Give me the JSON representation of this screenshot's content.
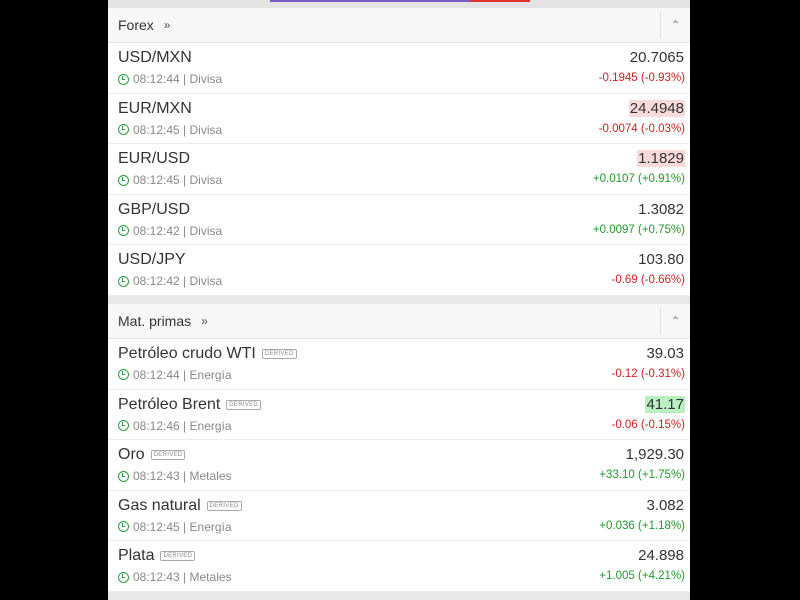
{
  "sections": [
    {
      "title": "Forex",
      "more": "»",
      "collapse": "⌃",
      "rows": [
        {
          "name": "USD/MXN",
          "time": "08:12:44",
          "category": "Divisa",
          "price": "20.7065",
          "change": "-0.1945 (-0.93%)",
          "dir": "neg",
          "flash": ""
        },
        {
          "name": "EUR/MXN",
          "time": "08:12:45",
          "category": "Divisa",
          "price": "24.4948",
          "change": "-0.0074 (-0.03%)",
          "dir": "neg",
          "flash": "down"
        },
        {
          "name": "EUR/USD",
          "time": "08:12:45",
          "category": "Divisa",
          "price": "1.1829",
          "change": "+0.0107 (+0.91%)",
          "dir": "pos",
          "flash": "down"
        },
        {
          "name": "GBP/USD",
          "time": "08:12:42",
          "category": "Divisa",
          "price": "1.3082",
          "change": "+0.0097 (+0.75%)",
          "dir": "pos",
          "flash": ""
        },
        {
          "name": "USD/JPY",
          "time": "08:12:42",
          "category": "Divisa",
          "price": "103.80",
          "change": "-0.69 (-0.66%)",
          "dir": "neg",
          "flash": ""
        }
      ]
    },
    {
      "title": "Mat. primas",
      "more": "»",
      "collapse": "⌃",
      "rows": [
        {
          "name": "Petróleo crudo WTI",
          "badge": "DERIVED",
          "time": "08:12:44",
          "category": "Energía",
          "price": "39.03",
          "change": "-0.12 (-0.31%)",
          "dir": "neg",
          "flash": ""
        },
        {
          "name": "Petróleo Brent",
          "badge": "DERIVED",
          "time": "08:12:46",
          "category": "Energía",
          "price": "41.17",
          "change": "-0.06 (-0.15%)",
          "dir": "neg",
          "flash": "up"
        },
        {
          "name": "Oro",
          "badge": "DERIVED",
          "time": "08:12:43",
          "category": "Metales",
          "price": "1,929.30",
          "change": "+33.10 (+1.75%)",
          "dir": "pos",
          "flash": ""
        },
        {
          "name": "Gas natural",
          "badge": "DERIVED",
          "time": "08:12:45",
          "category": "Energía",
          "price": "3.082",
          "change": "+0.036 (+1.18%)",
          "dir": "pos",
          "flash": ""
        },
        {
          "name": "Plata",
          "badge": "DERIVED",
          "time": "08:12:43",
          "category": "Metales",
          "price": "24.898",
          "change": "+1.005 (+4.21%)",
          "dir": "pos",
          "flash": ""
        }
      ]
    }
  ],
  "colors": {
    "negative": "#d02020",
    "positive": "#1f9a2a",
    "flash_down": "#fadbdb",
    "flash_up": "#b8f0c2",
    "tab_indicator": "#7b5cc4"
  }
}
